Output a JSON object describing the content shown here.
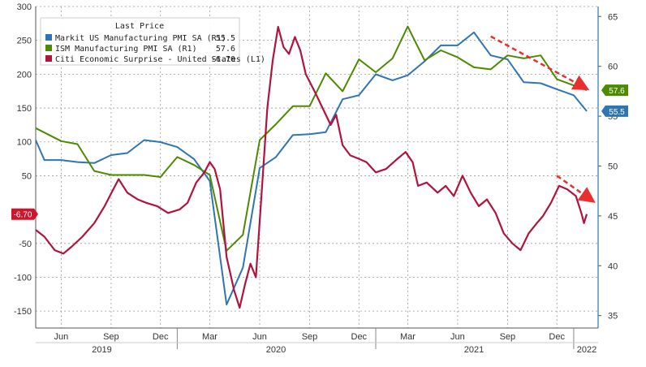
{
  "chart_data": {
    "type": "line",
    "legend": {
      "title": "Last Price",
      "placement": "top-left",
      "entries": [
        {
          "label": "Markit US Manufacturing PMI SA  (R1)",
          "value": "55.5",
          "color": "#2e75b6"
        },
        {
          "label": "ISM Manufacturing PMI SA  (R1)",
          "value": "57.6",
          "color": "#4d8a00"
        },
        {
          "label": "Citi Economic Surprise - United States  (L1)",
          "value": "-6.70",
          "color": "#b0143c"
        }
      ]
    },
    "left_axis": {
      "min": -175,
      "max": 300,
      "ticks": [
        "300",
        "250",
        "200",
        "150",
        "100",
        "50",
        "-50",
        "-100",
        "-150"
      ]
    },
    "right_axis": {
      "min": 33.75,
      "max": 66.0,
      "ticks": [
        "65",
        "60",
        "55",
        "50",
        "45",
        "40",
        "35"
      ]
    },
    "x_axis": {
      "start": "2019-04-15",
      "end": "2022-02-15",
      "month_ticks": [
        {
          "date": "2019-06-01",
          "label": "Jun"
        },
        {
          "date": "2019-09-01",
          "label": "Sep"
        },
        {
          "date": "2019-12-01",
          "label": "Dec"
        },
        {
          "date": "2020-03-01",
          "label": "Mar"
        },
        {
          "date": "2020-06-01",
          "label": "Jun"
        },
        {
          "date": "2020-09-01",
          "label": "Sep"
        },
        {
          "date": "2020-12-01",
          "label": "Dec"
        },
        {
          "date": "2021-03-01",
          "label": "Mar"
        },
        {
          "date": "2021-06-01",
          "label": "Jun"
        },
        {
          "date": "2021-09-01",
          "label": "Sep"
        },
        {
          "date": "2021-12-01",
          "label": "Dec"
        }
      ],
      "years": [
        {
          "label": "2019",
          "center": "2019-08-15"
        },
        {
          "label": "2020",
          "center": "2020-07-01"
        },
        {
          "label": "2021",
          "center": "2021-07-01"
        },
        {
          "label": "2022",
          "center": "2022-01-25"
        }
      ],
      "year_boundaries": [
        "2020-01-01",
        "2021-01-01",
        "2022-01-01"
      ]
    },
    "grid": true,
    "last_value_badges": [
      {
        "text": "57.6",
        "axis": "right",
        "value": 57.6,
        "color": "#4d8a00"
      },
      {
        "text": "55.5",
        "axis": "right",
        "value": 55.5,
        "color": "#2e75b6"
      },
      {
        "text": "-6.70",
        "axis": "left",
        "value": -6.7,
        "color": "#d0142c"
      }
    ],
    "series": [
      {
        "name": "Markit US Manufacturing PMI SA",
        "axis": "right",
        "color": "#2e75b6",
        "points": [
          [
            "2019-04-15",
            52.6
          ],
          [
            "2019-05-01",
            50.6
          ],
          [
            "2019-06-01",
            50.6
          ],
          [
            "2019-07-01",
            50.4
          ],
          [
            "2019-08-01",
            50.3
          ],
          [
            "2019-09-01",
            51.1
          ],
          [
            "2019-10-01",
            51.3
          ],
          [
            "2019-11-01",
            52.6
          ],
          [
            "2019-12-01",
            52.4
          ],
          [
            "2020-01-01",
            51.9
          ],
          [
            "2020-02-01",
            50.7
          ],
          [
            "2020-03-01",
            48.5
          ],
          [
            "2020-04-01",
            36.1
          ],
          [
            "2020-05-01",
            39.8
          ],
          [
            "2020-06-01",
            49.8
          ],
          [
            "2020-07-01",
            50.9
          ],
          [
            "2020-08-01",
            53.1
          ],
          [
            "2020-09-01",
            53.2
          ],
          [
            "2020-10-01",
            53.4
          ],
          [
            "2020-11-01",
            56.7
          ],
          [
            "2020-12-01",
            57.1
          ],
          [
            "2021-01-01",
            59.2
          ],
          [
            "2021-02-01",
            58.6
          ],
          [
            "2021-03-01",
            59.1
          ],
          [
            "2021-04-01",
            60.5
          ],
          [
            "2021-05-01",
            62.1
          ],
          [
            "2021-06-01",
            62.1
          ],
          [
            "2021-07-01",
            63.4
          ],
          [
            "2021-08-01",
            61.1
          ],
          [
            "2021-09-01",
            60.7
          ],
          [
            "2021-10-01",
            58.4
          ],
          [
            "2021-11-01",
            58.3
          ],
          [
            "2021-12-01",
            57.7
          ],
          [
            "2022-01-01",
            57.1
          ],
          [
            "2022-01-25",
            55.5
          ]
        ]
      },
      {
        "name": "ISM Manufacturing PMI SA",
        "axis": "right",
        "color": "#4d8a00",
        "points": [
          [
            "2019-04-15",
            53.8
          ],
          [
            "2019-06-01",
            52.5
          ],
          [
            "2019-07-01",
            52.2
          ],
          [
            "2019-08-01",
            49.5
          ],
          [
            "2019-09-01",
            49.1
          ],
          [
            "2019-10-01",
            49.1
          ],
          [
            "2019-11-01",
            49.1
          ],
          [
            "2019-12-01",
            48.9
          ],
          [
            "2020-01-01",
            50.9
          ],
          [
            "2020-02-01",
            50.1
          ],
          [
            "2020-03-01",
            49.1
          ],
          [
            "2020-04-01",
            41.5
          ],
          [
            "2020-05-01",
            43.1
          ],
          [
            "2020-06-01",
            52.6
          ],
          [
            "2020-07-01",
            54.2
          ],
          [
            "2020-08-01",
            56.0
          ],
          [
            "2020-09-01",
            56.0
          ],
          [
            "2020-10-01",
            59.3
          ],
          [
            "2020-11-01",
            57.5
          ],
          [
            "2020-12-01",
            60.7
          ],
          [
            "2021-01-01",
            59.4
          ],
          [
            "2021-02-01",
            60.8
          ],
          [
            "2021-03-01",
            64.0
          ],
          [
            "2021-04-01",
            60.6
          ],
          [
            "2021-05-01",
            61.6
          ],
          [
            "2021-06-01",
            60.9
          ],
          [
            "2021-07-01",
            59.9
          ],
          [
            "2021-08-01",
            59.7
          ],
          [
            "2021-09-01",
            61.1
          ],
          [
            "2021-10-01",
            60.8
          ],
          [
            "2021-11-01",
            61.1
          ],
          [
            "2021-12-01",
            58.7
          ],
          [
            "2022-01-25",
            57.6
          ]
        ]
      },
      {
        "name": "Citi Economic Surprise - United States",
        "axis": "left",
        "color": "#b0143c",
        "points": [
          [
            "2019-04-15",
            -30
          ],
          [
            "2019-05-01",
            -40
          ],
          [
            "2019-05-20",
            -60
          ],
          [
            "2019-06-05",
            -65
          ],
          [
            "2019-06-20",
            -55
          ],
          [
            "2019-07-10",
            -40
          ],
          [
            "2019-08-01",
            -20
          ],
          [
            "2019-08-20",
            5
          ],
          [
            "2019-09-05",
            30
          ],
          [
            "2019-09-15",
            45
          ],
          [
            "2019-10-01",
            25
          ],
          [
            "2019-10-20",
            15
          ],
          [
            "2019-11-05",
            10
          ],
          [
            "2019-11-25",
            5
          ],
          [
            "2019-12-15",
            -5
          ],
          [
            "2020-01-05",
            0
          ],
          [
            "2020-01-20",
            10
          ],
          [
            "2020-02-05",
            40
          ],
          [
            "2020-02-20",
            55
          ],
          [
            "2020-03-01",
            70
          ],
          [
            "2020-03-10",
            60
          ],
          [
            "2020-03-20",
            30
          ],
          [
            "2020-04-01",
            -70
          ],
          [
            "2020-04-15",
            -120
          ],
          [
            "2020-04-25",
            -145
          ],
          [
            "2020-05-05",
            -110
          ],
          [
            "2020-05-15",
            -80
          ],
          [
            "2020-05-25",
            -100
          ],
          [
            "2020-06-05",
            30
          ],
          [
            "2020-06-15",
            150
          ],
          [
            "2020-06-25",
            220
          ],
          [
            "2020-07-05",
            270
          ],
          [
            "2020-07-15",
            240
          ],
          [
            "2020-07-25",
            230
          ],
          [
            "2020-08-05",
            255
          ],
          [
            "2020-08-15",
            235
          ],
          [
            "2020-08-25",
            200
          ],
          [
            "2020-09-10",
            175
          ],
          [
            "2020-09-25",
            150
          ],
          [
            "2020-10-10",
            125
          ],
          [
            "2020-10-20",
            140
          ],
          [
            "2020-11-01",
            95
          ],
          [
            "2020-11-15",
            80
          ],
          [
            "2020-12-01",
            75
          ],
          [
            "2020-12-15",
            70
          ],
          [
            "2021-01-01",
            55
          ],
          [
            "2021-01-20",
            60
          ],
          [
            "2021-02-10",
            75
          ],
          [
            "2021-02-25",
            85
          ],
          [
            "2021-03-10",
            70
          ],
          [
            "2021-03-20",
            35
          ],
          [
            "2021-04-05",
            40
          ],
          [
            "2021-04-25",
            25
          ],
          [
            "2021-05-10",
            35
          ],
          [
            "2021-05-25",
            20
          ],
          [
            "2021-06-10",
            50
          ],
          [
            "2021-06-25",
            25
          ],
          [
            "2021-07-10",
            5
          ],
          [
            "2021-07-25",
            15
          ],
          [
            "2021-08-10",
            -5
          ],
          [
            "2021-08-25",
            -35
          ],
          [
            "2021-09-10",
            -50
          ],
          [
            "2021-09-25",
            -60
          ],
          [
            "2021-10-10",
            -35
          ],
          [
            "2021-10-25",
            -20
          ],
          [
            "2021-11-05",
            -10
          ],
          [
            "2021-11-20",
            10
          ],
          [
            "2021-12-05",
            35
          ],
          [
            "2021-12-20",
            30
          ],
          [
            "2022-01-05",
            20
          ],
          [
            "2022-01-15",
            -5
          ],
          [
            "2022-01-20",
            -20
          ],
          [
            "2022-01-25",
            -6.7
          ]
        ]
      }
    ]
  }
}
